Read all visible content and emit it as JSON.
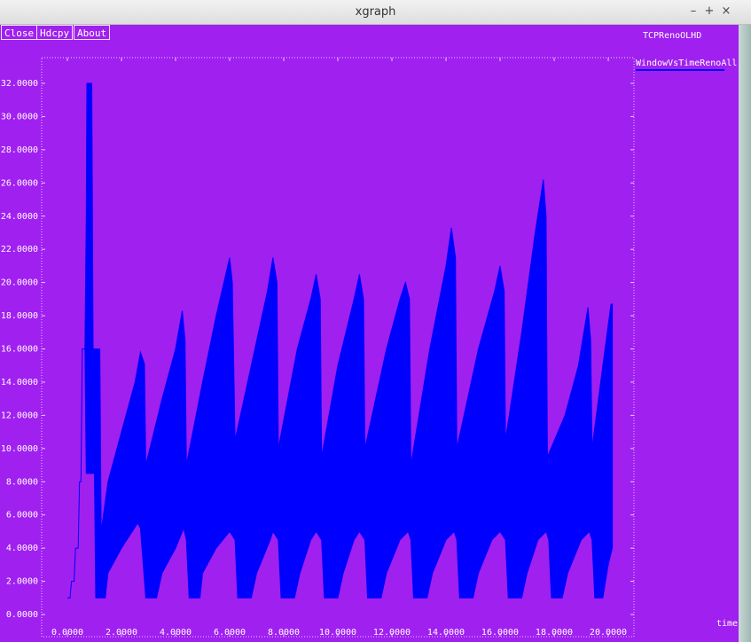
{
  "window": {
    "title": "xgraph",
    "controls": {
      "minimize": "–",
      "maximize": "+",
      "close": "×"
    }
  },
  "buttons": {
    "close": "Close",
    "hdcpy": "Hdcpy",
    "about": "About"
  },
  "graph_title": "TCPRenoOLHD",
  "legend_label": "WindowVsTimeRenoAll",
  "x_unit_label": "time",
  "colors": {
    "background": "#a020f0",
    "series": "#0000ff",
    "axis": "#e6c8ff",
    "text": "#ffffff"
  },
  "chart_data": {
    "type": "area",
    "title": "TCPRenoOLHD",
    "xlabel": "time",
    "ylabel": "",
    "xlim": [
      0,
      20
    ],
    "ylim": [
      0,
      32
    ],
    "x_ticks": [
      "0.0000",
      "2.0000",
      "4.0000",
      "6.0000",
      "8.0000",
      "10.0000",
      "12.0000",
      "14.0000",
      "16.0000",
      "18.0000",
      "20.0000"
    ],
    "y_ticks": [
      "0.0000",
      "2.0000",
      "4.0000",
      "6.0000",
      "8.0000",
      "10.0000",
      "12.0000",
      "14.0000",
      "16.0000",
      "18.0000",
      "20.0000",
      "22.0000",
      "24.0000",
      "26.0000",
      "28.0000",
      "30.0000",
      "32.0000"
    ],
    "grid": false,
    "legend_position": "top-right",
    "series": [
      {
        "name": "WindowVsTimeRenoAll",
        "upper": [
          [
            0.0,
            1
          ],
          [
            0.1,
            1
          ],
          [
            0.15,
            2
          ],
          [
            0.25,
            2
          ],
          [
            0.3,
            4
          ],
          [
            0.4,
            4
          ],
          [
            0.45,
            8
          ],
          [
            0.5,
            8
          ],
          [
            0.55,
            16
          ],
          [
            0.65,
            16
          ],
          [
            0.7,
            24
          ],
          [
            0.72,
            32
          ],
          [
            0.9,
            32
          ],
          [
            0.95,
            16
          ],
          [
            1.2,
            16
          ],
          [
            1.25,
            5
          ],
          [
            1.5,
            8
          ],
          [
            2.0,
            11
          ],
          [
            2.5,
            14
          ],
          [
            2.7,
            15.8
          ],
          [
            2.85,
            15.1
          ],
          [
            2.9,
            9
          ],
          [
            3.5,
            13
          ],
          [
            4.0,
            16
          ],
          [
            4.25,
            18.3
          ],
          [
            4.35,
            16.5
          ],
          [
            4.4,
            9
          ],
          [
            5.0,
            14
          ],
          [
            5.5,
            18
          ],
          [
            6.0,
            21.5
          ],
          [
            6.1,
            20
          ],
          [
            6.2,
            10.5
          ],
          [
            6.8,
            15
          ],
          [
            7.4,
            19.5
          ],
          [
            7.6,
            21.5
          ],
          [
            7.75,
            20
          ],
          [
            7.8,
            10
          ],
          [
            8.5,
            16
          ],
          [
            9.0,
            19
          ],
          [
            9.2,
            20.5
          ],
          [
            9.35,
            19
          ],
          [
            9.4,
            9.5
          ],
          [
            10.0,
            15
          ],
          [
            10.6,
            19
          ],
          [
            10.8,
            20.5
          ],
          [
            10.95,
            19
          ],
          [
            11.0,
            10
          ],
          [
            11.8,
            16
          ],
          [
            12.3,
            19
          ],
          [
            12.5,
            20
          ],
          [
            12.65,
            19
          ],
          [
            12.7,
            9
          ],
          [
            13.4,
            16
          ],
          [
            14.0,
            21
          ],
          [
            14.2,
            23.3
          ],
          [
            14.35,
            21.5
          ],
          [
            14.4,
            10
          ],
          [
            15.2,
            16
          ],
          [
            15.8,
            19.5
          ],
          [
            16.0,
            21
          ],
          [
            16.15,
            19.5
          ],
          [
            16.2,
            10.5
          ],
          [
            16.8,
            17
          ],
          [
            17.3,
            23
          ],
          [
            17.6,
            26.2
          ],
          [
            17.7,
            24
          ],
          [
            17.75,
            9.5
          ],
          [
            18.4,
            12
          ],
          [
            18.9,
            15
          ],
          [
            19.25,
            18.5
          ],
          [
            19.35,
            16.5
          ],
          [
            19.4,
            10
          ],
          [
            19.8,
            15
          ],
          [
            20.1,
            18.7
          ],
          [
            20.15,
            18.7
          ]
        ],
        "lower": [
          [
            0.0,
            1
          ],
          [
            0.1,
            1
          ],
          [
            0.15,
            2
          ],
          [
            0.25,
            2
          ],
          [
            0.3,
            4
          ],
          [
            0.4,
            4
          ],
          [
            0.45,
            8
          ],
          [
            0.5,
            8
          ],
          [
            0.55,
            16
          ],
          [
            0.65,
            16
          ],
          [
            0.7,
            8.5
          ],
          [
            1.0,
            8.5
          ],
          [
            1.05,
            1
          ],
          [
            1.4,
            1
          ],
          [
            1.5,
            2.5
          ],
          [
            2.0,
            4
          ],
          [
            2.6,
            5.5
          ],
          [
            2.7,
            5.2
          ],
          [
            2.9,
            1
          ],
          [
            3.3,
            1
          ],
          [
            3.5,
            2.5
          ],
          [
            4.0,
            4
          ],
          [
            4.3,
            5.2
          ],
          [
            4.4,
            4.5
          ],
          [
            4.5,
            1
          ],
          [
            4.9,
            1
          ],
          [
            5.0,
            2.5
          ],
          [
            5.5,
            4
          ],
          [
            6.0,
            5
          ],
          [
            6.2,
            4.5
          ],
          [
            6.3,
            1
          ],
          [
            6.8,
            1
          ],
          [
            7.0,
            2.5
          ],
          [
            7.5,
            4.5
          ],
          [
            7.6,
            5
          ],
          [
            7.8,
            4.5
          ],
          [
            7.9,
            1
          ],
          [
            8.4,
            1
          ],
          [
            8.6,
            2.5
          ],
          [
            9.0,
            4.5
          ],
          [
            9.2,
            5
          ],
          [
            9.4,
            4.5
          ],
          [
            9.5,
            1
          ],
          [
            10.0,
            1
          ],
          [
            10.2,
            2.5
          ],
          [
            10.6,
            4.5
          ],
          [
            10.8,
            5
          ],
          [
            11.0,
            4.5
          ],
          [
            11.1,
            1
          ],
          [
            11.6,
            1
          ],
          [
            11.8,
            2.5
          ],
          [
            12.3,
            4.5
          ],
          [
            12.6,
            5
          ],
          [
            12.7,
            4.5
          ],
          [
            12.8,
            1
          ],
          [
            13.3,
            1
          ],
          [
            13.5,
            2.5
          ],
          [
            14.0,
            4.5
          ],
          [
            14.3,
            5
          ],
          [
            14.4,
            4.5
          ],
          [
            14.5,
            1
          ],
          [
            15.0,
            1
          ],
          [
            15.2,
            2.5
          ],
          [
            15.7,
            4.5
          ],
          [
            16.0,
            5
          ],
          [
            16.2,
            4.5
          ],
          [
            16.3,
            1
          ],
          [
            16.8,
            1
          ],
          [
            17.0,
            2.5
          ],
          [
            17.4,
            4.5
          ],
          [
            17.7,
            5
          ],
          [
            17.8,
            4.5
          ],
          [
            17.9,
            1
          ],
          [
            18.3,
            1
          ],
          [
            18.5,
            2.5
          ],
          [
            19.0,
            4.5
          ],
          [
            19.3,
            5
          ],
          [
            19.4,
            4.5
          ],
          [
            19.5,
            1
          ],
          [
            19.8,
            1
          ],
          [
            20.0,
            3
          ],
          [
            20.15,
            4
          ]
        ]
      }
    ]
  }
}
